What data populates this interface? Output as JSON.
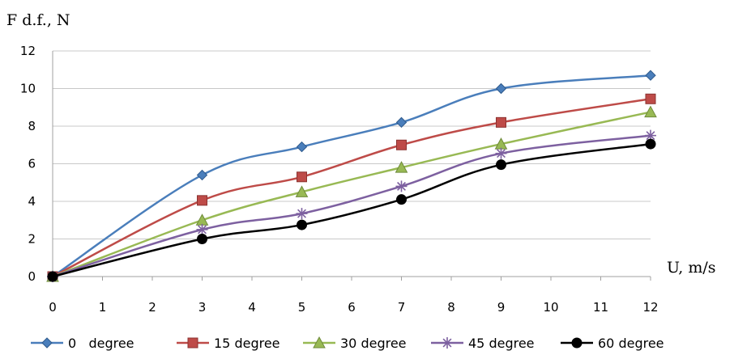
{
  "chart_data": {
    "type": "line",
    "ylabel": "F d.f., N",
    "xlabel": "U, m/s",
    "xlim": [
      0,
      12
    ],
    "ylim": [
      0,
      12
    ],
    "x_ticks": [
      0,
      1,
      2,
      3,
      4,
      5,
      6,
      7,
      8,
      9,
      10,
      11,
      12
    ],
    "y_ticks": [
      0,
      2,
      4,
      6,
      8,
      10,
      12
    ],
    "grid": "horizontal",
    "legend_position": "bottom",
    "smooth": true,
    "series": [
      {
        "name": "0   degree",
        "color": "#4a7ebb",
        "marker": "diamond",
        "x": [
          0,
          3,
          5,
          7,
          9,
          12
        ],
        "y": [
          0,
          5.4,
          6.9,
          8.2,
          10.0,
          10.7
        ]
      },
      {
        "name": "15 degree",
        "color": "#be4b48",
        "marker": "square",
        "x": [
          0,
          3,
          5,
          7,
          9,
          12
        ],
        "y": [
          0,
          4.05,
          5.3,
          7.0,
          8.2,
          9.45
        ]
      },
      {
        "name": "30 degree",
        "color": "#98b954",
        "marker": "triangle",
        "x": [
          0,
          3,
          5,
          7,
          9,
          12
        ],
        "y": [
          0,
          3.0,
          4.5,
          5.8,
          7.05,
          8.75
        ]
      },
      {
        "name": "45 degree",
        "color": "#7d60a0",
        "marker": "asterisk",
        "x": [
          0,
          3,
          5,
          7,
          9,
          12
        ],
        "y": [
          0,
          2.5,
          3.35,
          4.8,
          6.55,
          7.5
        ]
      },
      {
        "name": "60 degree",
        "color": "#000000",
        "marker": "circle",
        "x": [
          0,
          3,
          5,
          7,
          9,
          12
        ],
        "y": [
          0,
          2.0,
          2.75,
          4.1,
          5.95,
          7.05
        ]
      }
    ]
  }
}
